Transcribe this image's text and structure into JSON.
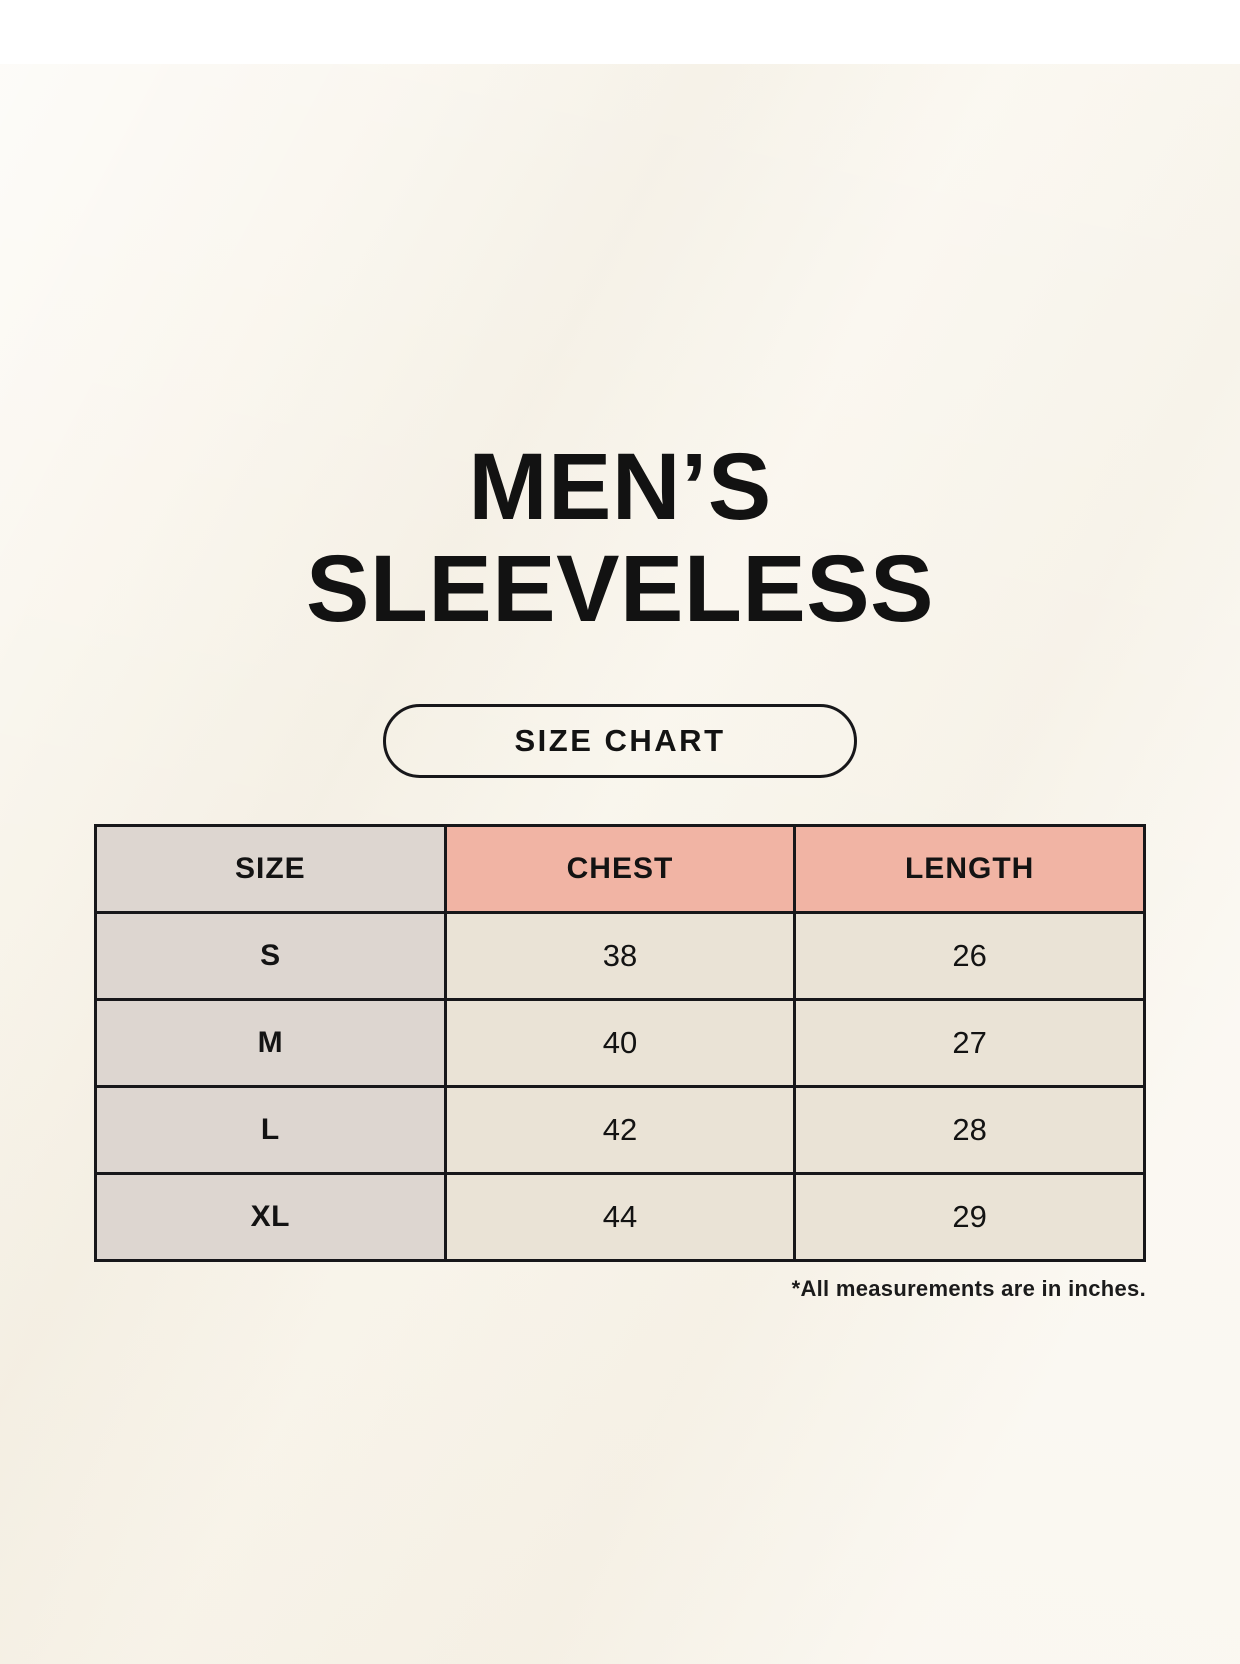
{
  "header": {
    "title_line1": "MEN’S",
    "title_line2": "SLEEVELESS",
    "badge_label": "SIZE CHART"
  },
  "chart_data": {
    "type": "table",
    "title": "MEN’S SLEEVELESS",
    "subtitle": "SIZE CHART",
    "columns": [
      "SIZE",
      "CHEST",
      "LENGTH"
    ],
    "rows": [
      [
        "S",
        "38",
        "26"
      ],
      [
        "M",
        "40",
        "27"
      ],
      [
        "L",
        "42",
        "28"
      ],
      [
        "XL",
        "44",
        "29"
      ]
    ],
    "units_note": "*All measurements are in inches.",
    "layout": "grid table, black borders, centered values"
  },
  "colors": {
    "background": "#f9f5ec",
    "size_column_bg": "#ddd6d0",
    "accent_header_bg": "#f1b4a4",
    "value_cell_bg": "#eae3d6",
    "border": "#17171a",
    "text": "#131313"
  }
}
